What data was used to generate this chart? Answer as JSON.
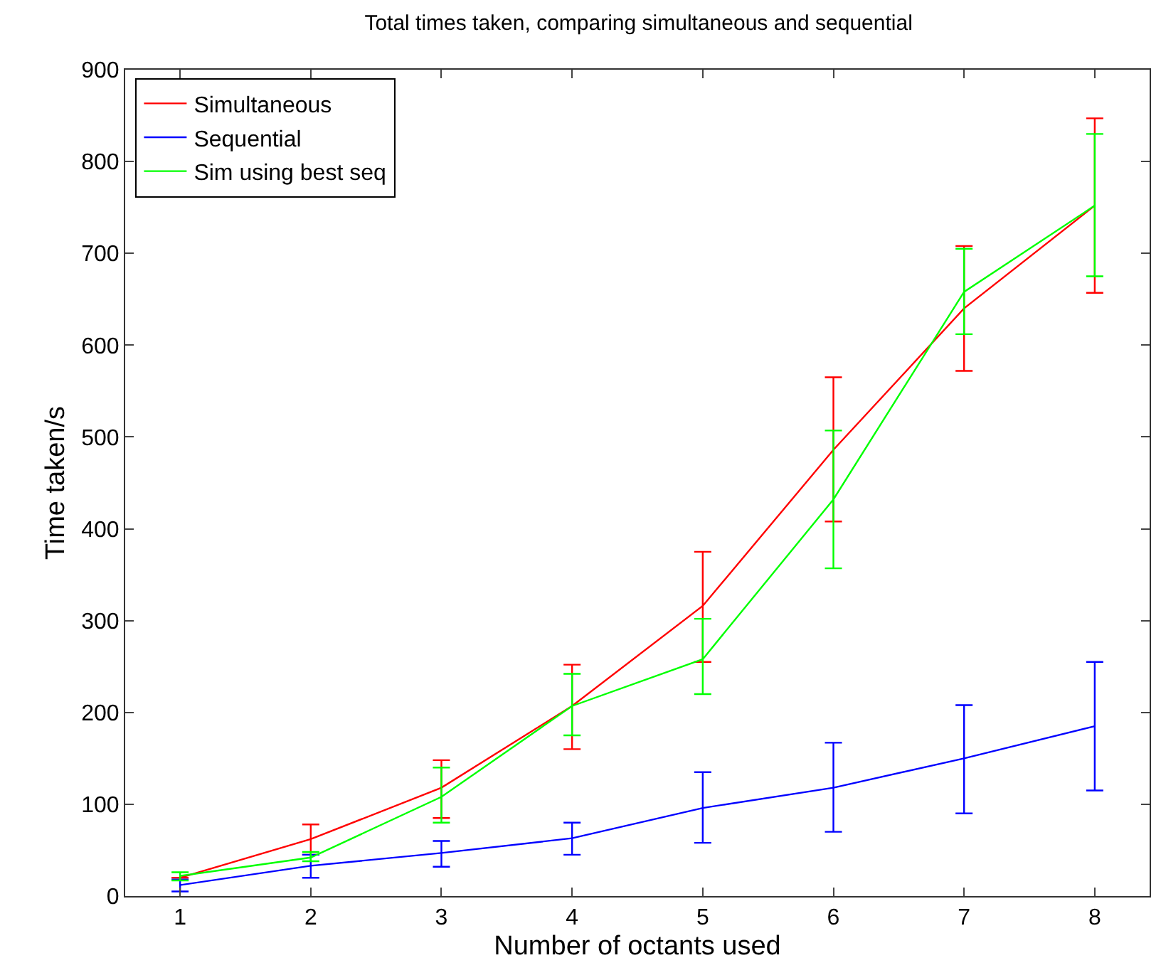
{
  "chart_data": {
    "type": "line",
    "title": "Total times taken, comparing simultaneous and sequential",
    "xlabel": "Number of octants used",
    "ylabel": "Time taken/s",
    "x": [
      1,
      2,
      3,
      4,
      5,
      6,
      7,
      8
    ],
    "series": [
      {
        "name": "Simultaneous",
        "color": "#ff0000",
        "values": [
          20,
          62,
          118,
          207,
          316,
          486,
          640,
          752
        ],
        "errors": [
          null,
          [
            45,
            78
          ],
          [
            85,
            148
          ],
          [
            160,
            252
          ],
          [
            255,
            375
          ],
          [
            408,
            565
          ],
          [
            572,
            708
          ],
          [
            657,
            847
          ]
        ]
      },
      {
        "name": "Sequential",
        "color": "#0000ff",
        "values": [
          12,
          33,
          47,
          63,
          96,
          118,
          150,
          185
        ],
        "errors": [
          [
            5,
            18
          ],
          [
            20,
            45
          ],
          [
            32,
            60
          ],
          [
            45,
            80
          ],
          [
            58,
            135
          ],
          [
            70,
            167
          ],
          [
            90,
            208
          ],
          [
            115,
            255
          ]
        ]
      },
      {
        "name": "Sim using best seq",
        "color": "#00ff00",
        "values": [
          22,
          42,
          108,
          207,
          258,
          432,
          658,
          752
        ],
        "errors": [
          [
            17,
            26
          ],
          [
            38,
            48
          ],
          [
            80,
            140
          ],
          [
            175,
            242
          ],
          [
            220,
            302
          ],
          [
            357,
            507
          ],
          [
            612,
            705
          ],
          [
            675,
            830
          ]
        ]
      }
    ],
    "xlim": [
      0.58,
      8.42
    ],
    "xticks": [
      1,
      2,
      3,
      4,
      5,
      6,
      7,
      8
    ],
    "ylim": [
      0,
      900
    ],
    "yticks": [
      0,
      100,
      200,
      300,
      400,
      500,
      600,
      700,
      800,
      900
    ],
    "grid": false,
    "legend": "top left",
    "marker": "none",
    "line_style": "solid"
  }
}
